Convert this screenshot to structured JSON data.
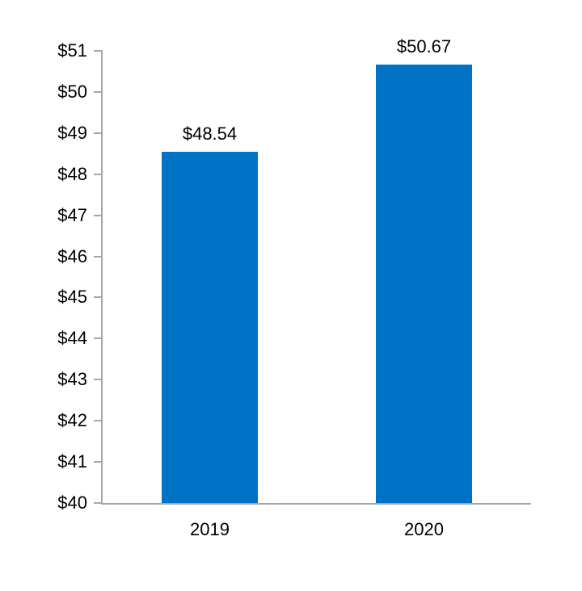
{
  "chart_data": {
    "type": "bar",
    "categories": [
      "2019",
      "2020"
    ],
    "values": [
      48.54,
      50.67
    ],
    "data_labels": [
      "$48.54",
      "$50.67"
    ],
    "title": "",
    "xlabel": "",
    "ylabel": "",
    "ylim": [
      40,
      51
    ],
    "y_tick_step": 1,
    "y_tick_labels": [
      "$40",
      "$41",
      "$42",
      "$43",
      "$44",
      "$45",
      "$46",
      "$47",
      "$48",
      "$49",
      "$50",
      "$51"
    ],
    "grid": false,
    "legend": false,
    "bar_color": "#0072C6",
    "axis_color": "#A6A6A6",
    "text_color": "#000000",
    "background_color": "#FFFFFF"
  }
}
